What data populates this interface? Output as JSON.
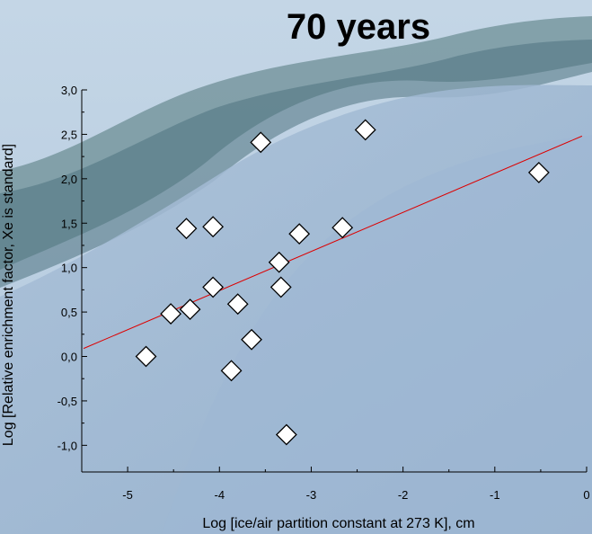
{
  "chart_data": {
    "type": "scatter",
    "title": "70 years",
    "xlabel": "Log [ice/air partition constant at 273 K], cm",
    "ylabel": "Log [Relative enrichment factor, Xe is standard]",
    "xlim": [
      -5.5,
      0
    ],
    "ylim": [
      -1.3,
      3.0
    ],
    "xticks": [
      -5,
      -4,
      -3,
      -2,
      -1,
      0
    ],
    "xtick_labels": [
      "-5",
      "-4",
      "-3",
      "-2",
      "-1",
      "0"
    ],
    "yticks": [
      -1.0,
      -0.5,
      0.0,
      0.5,
      1.0,
      1.5,
      2.0,
      2.5,
      3.0
    ],
    "ytick_labels": [
      "-1,0",
      "-0,5",
      "0,0",
      "0,5",
      "1,0",
      "1,5",
      "2,0",
      "2,5",
      "3,0"
    ],
    "grid": false,
    "marker": "diamond",
    "marker_color": "#ffffff",
    "fit_line_color": "#dd0000",
    "points": [
      {
        "x": -4.8,
        "y": 0.0
      },
      {
        "x": -4.53,
        "y": 0.48
      },
      {
        "x": -4.32,
        "y": 0.53
      },
      {
        "x": -4.36,
        "y": 1.44
      },
      {
        "x": -4.07,
        "y": 1.46
      },
      {
        "x": -4.07,
        "y": 0.78
      },
      {
        "x": -3.8,
        "y": 0.59
      },
      {
        "x": -3.87,
        "y": -0.16
      },
      {
        "x": -3.65,
        "y": 0.19
      },
      {
        "x": -3.55,
        "y": 2.41
      },
      {
        "x": -3.35,
        "y": 1.06
      },
      {
        "x": -3.33,
        "y": 0.78
      },
      {
        "x": -3.27,
        "y": -0.88
      },
      {
        "x": -3.13,
        "y": 1.38
      },
      {
        "x": -2.66,
        "y": 1.45
      },
      {
        "x": -2.41,
        "y": 2.55
      },
      {
        "x": -0.52,
        "y": 2.07
      }
    ],
    "fit_line": {
      "x": [
        -5.48,
        -0.05
      ],
      "y": [
        0.09,
        2.48
      ]
    }
  }
}
